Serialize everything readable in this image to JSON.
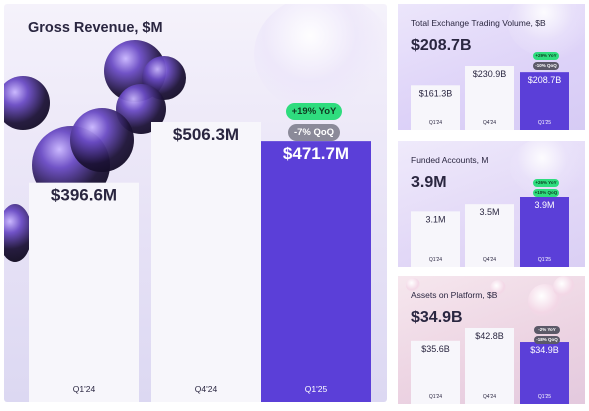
{
  "colors": {
    "bar_light": "#f7f6fb",
    "bar_accent": "#5b3fd8",
    "text_dark": "#2a2640",
    "text_on_accent": "#ffffff",
    "badge_green": "#2fdc7e",
    "badge_gray": "#8b8a99"
  },
  "decor": {
    "icons": [
      "purple-blob-cluster-icon",
      "glass-sphere-cluster-icon",
      "pink-bubbles-icon"
    ]
  },
  "chart_data": [
    {
      "type": "bar",
      "title": "Gross Revenue, $M",
      "categories": [
        "Q1'24",
        "Q4'24",
        "Q1'25"
      ],
      "values": [
        396.6,
        506.3,
        471.7
      ],
      "value_labels": [
        "$396.6M",
        "$506.3M",
        "$471.7M"
      ],
      "highlight_index": 2,
      "badges": [
        "+19% YoY",
        "-7% QoQ"
      ],
      "ylim": [
        0,
        620
      ],
      "grid": false,
      "legend": "none"
    },
    {
      "type": "bar",
      "title": "Total Exchange Trading Volume, $B",
      "headline": "$208.7B",
      "categories": [
        "Q1'24",
        "Q4'24",
        "Q1'25"
      ],
      "values": [
        161.3,
        230.9,
        208.7
      ],
      "value_labels": [
        "$161.3B",
        "$230.9B",
        "$208.7B"
      ],
      "highlight_index": 2,
      "badges": [
        "+29% YoY",
        "-10% QoQ"
      ],
      "ylim": [
        0,
        320
      ],
      "grid": false,
      "legend": "none"
    },
    {
      "type": "bar",
      "title": "Funded Accounts, M",
      "headline": "3.9M",
      "categories": [
        "Q1'24",
        "Q4'24",
        "Q1'25"
      ],
      "values": [
        3.1,
        3.5,
        3.9
      ],
      "value_labels": [
        "3.1M",
        "3.5M",
        "3.9M"
      ],
      "highlight_index": 2,
      "badges": [
        "+26% YoY",
        "+10% QoQ"
      ],
      "ylim": [
        0,
        6
      ],
      "grid": false,
      "legend": "none"
    },
    {
      "type": "bar",
      "title": "Assets on Platform, $B",
      "headline": "$34.9B",
      "categories": [
        "Q1'24",
        "Q4'24",
        "Q1'25"
      ],
      "values": [
        35.6,
        42.8,
        34.9
      ],
      "value_labels": [
        "$35.6B",
        "$42.8B",
        "$34.9B"
      ],
      "highlight_index": 2,
      "badges": [
        "-2% YoY",
        "-18% QoQ"
      ],
      "ylim": [
        0,
        65
      ],
      "grid": false,
      "legend": "none"
    }
  ]
}
